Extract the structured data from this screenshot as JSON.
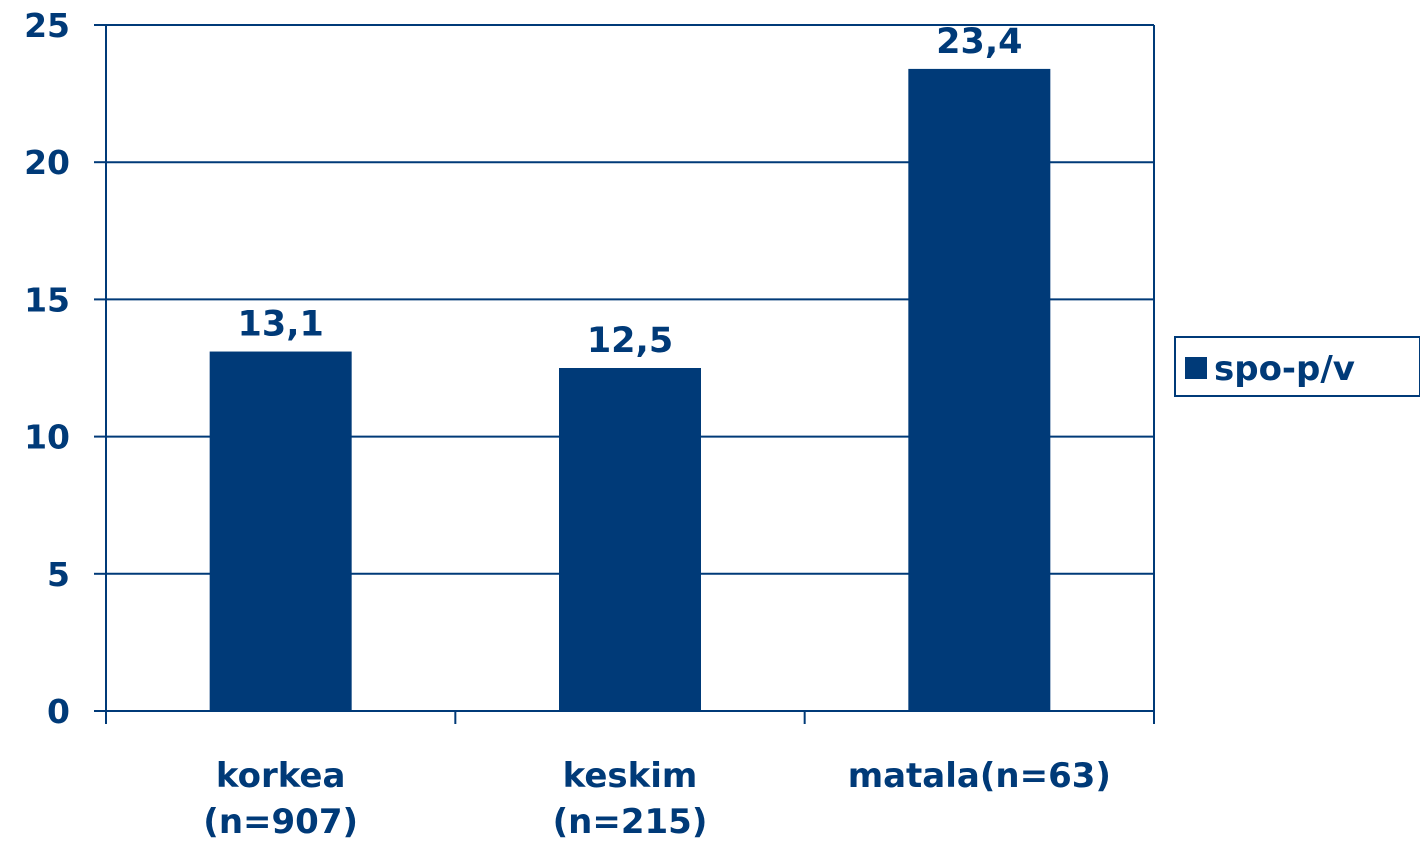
{
  "chart_data": {
    "type": "bar",
    "categories": [
      [
        "korkea",
        "(n=907)"
      ],
      [
        "keskim",
        "(n=215)"
      ],
      [
        "matala(n=63)"
      ]
    ],
    "series": [
      {
        "name": "spo-p/v",
        "values": [
          13.1,
          12.5,
          23.4
        ],
        "data_labels": [
          "13,1",
          "12,5",
          "23,4"
        ]
      }
    ],
    "ylim": [
      0,
      25
    ],
    "yticks": [
      0,
      5,
      10,
      15,
      20,
      25
    ],
    "grid": true,
    "legend": "right",
    "colors": {
      "bar": "#003a78",
      "text": "#003a78",
      "grid": "#003a78"
    }
  }
}
